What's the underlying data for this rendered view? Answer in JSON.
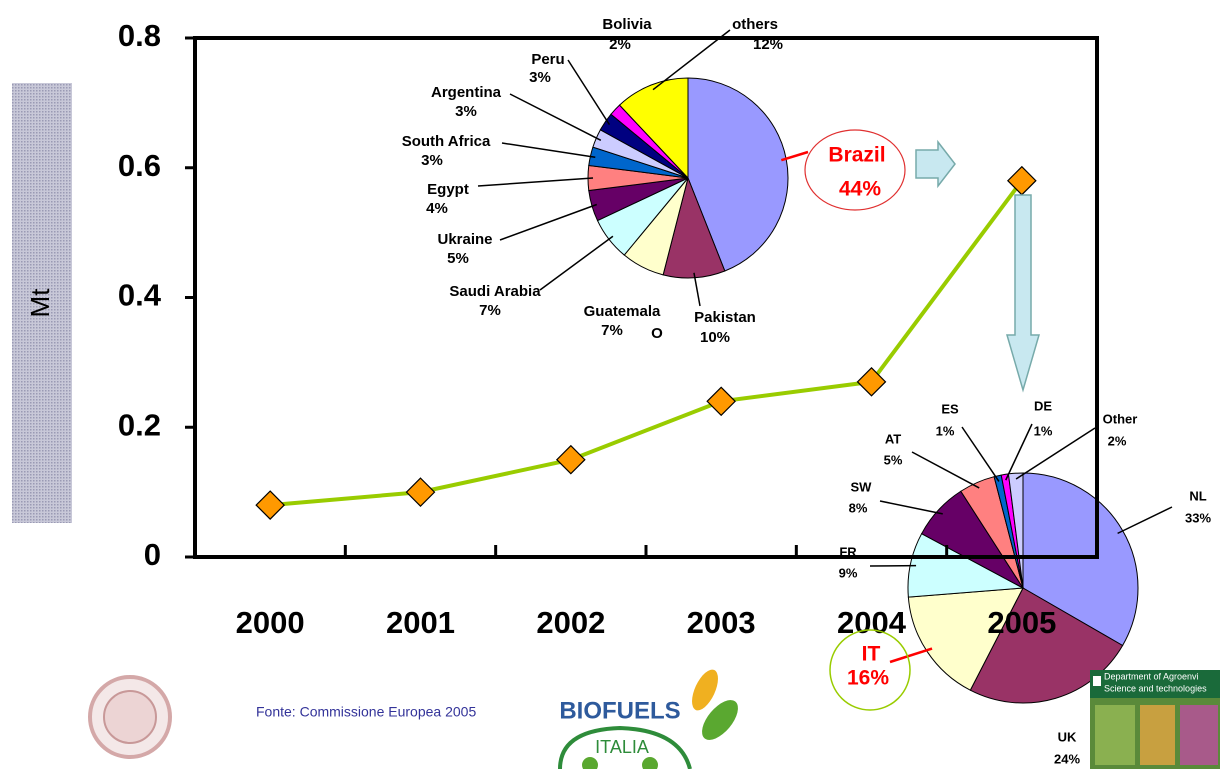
{
  "chart_data": [
    {
      "type": "line",
      "ylabel": "Mt",
      "categories": [
        "2000",
        "2001",
        "2002",
        "2003",
        "2004",
        "2005"
      ],
      "values": [
        0.08,
        0.1,
        0.15,
        0.24,
        0.27,
        0.58
      ],
      "color": "#99cc00",
      "marker_color": "#ff9900",
      "ylim": [
        0,
        0.8
      ],
      "yticks": [
        0,
        0.2,
        0.4,
        0.6,
        0.8
      ]
    },
    {
      "type": "pie",
      "categories": [
        "Brazil",
        "Pakistan",
        "Guatemala",
        "Saudi Arabia",
        "Ukraine",
        "Egypt",
        "South Africa",
        "Argentina",
        "Peru",
        "Bolivia",
        "others"
      ],
      "values": [
        44,
        10,
        7,
        7,
        5,
        4,
        3,
        3,
        3,
        2,
        12
      ],
      "value_labels": [
        "44%",
        "10%",
        "7%",
        "7%",
        "5%",
        "4%",
        "3%",
        "3%",
        "3%",
        "2%",
        "12%"
      ],
      "colors": [
        "#9999ff",
        "#993366",
        "#ffffcc",
        "#ccffff",
        "#660066",
        "#ff8080",
        "#0066cc",
        "#ccccff",
        "#000080",
        "#ff00ff",
        "#ffff00"
      ],
      "annotations": [
        "O"
      ]
    },
    {
      "type": "pie",
      "categories": [
        "NL",
        "UK",
        "IT",
        "FR",
        "SW",
        "AT",
        "ES",
        "DE",
        "Other"
      ],
      "values": [
        33,
        24,
        16,
        9,
        8,
        5,
        1,
        1,
        2
      ],
      "value_labels": [
        "33%",
        "24%",
        "16%",
        "9%",
        "8%",
        "5%",
        "1%",
        "1%",
        "2%"
      ],
      "colors": [
        "#9999ff",
        "#993366",
        "#ffffcc",
        "#ccffff",
        "#660066",
        "#ff8080",
        "#0066cc",
        "#ff00ff",
        "#ccccff"
      ]
    }
  ],
  "source": "Fonte: Commissione Europea 2005",
  "logos": {
    "biofuels": "BIOFUELS",
    "italia": "ITALIA",
    "department": [
      "Department of Agroenvi",
      "Science and technologies"
    ]
  }
}
